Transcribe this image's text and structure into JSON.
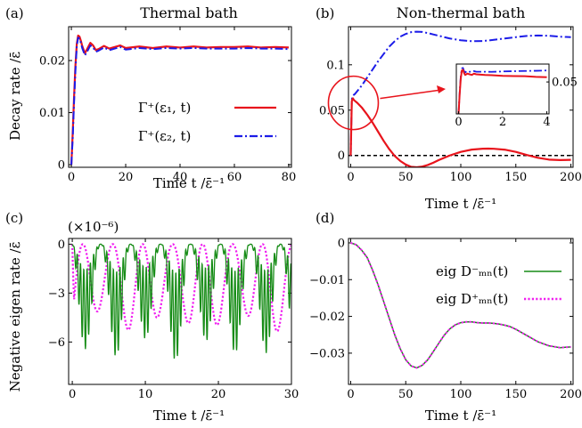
{
  "figure": {
    "ylabel_top": "Decay rate /ε̄",
    "ylabel_bottom": "Negative eigen rate /ε̄"
  },
  "colors": {
    "red": "#e8141c",
    "blue": "#1c1ce8",
    "green": "#168c16",
    "magenta": "#f01ef0",
    "dashed": "#000000"
  },
  "chart_data": [
    {
      "id": "a",
      "panel_label": "(a)",
      "title": "Thermal bath",
      "type": "line",
      "xlabel": "Time t /ε̄⁻¹",
      "ylabel": "Decay rate /ε̄",
      "xlim": [
        -1,
        81
      ],
      "ylim": [
        -0.0005,
        0.0265
      ],
      "xticks": [
        0,
        20,
        40,
        60,
        80
      ],
      "xtick_labels": [
        "0",
        "20",
        "40",
        "60",
        "80"
      ],
      "yticks": [
        0,
        0.01,
        0.02
      ],
      "ytick_labels": [
        "0",
        "0.01",
        "0.02"
      ],
      "legend": {
        "position": "center-right",
        "entries": [
          "Γ⁺(ε₁, t)",
          "Γ⁺(ε₂, t)"
        ]
      },
      "series": [
        {
          "name": "Γ⁺(ε₁, t)",
          "color": "red",
          "style": "solid",
          "x": [
            0,
            0.5,
            1,
            1.5,
            2,
            2.5,
            3,
            3.5,
            4,
            5,
            6,
            7,
            8,
            9,
            10,
            12,
            14,
            16,
            18,
            20,
            25,
            30,
            35,
            40,
            45,
            50,
            55,
            60,
            65,
            70,
            75,
            80
          ],
          "y": [
            0,
            0.006,
            0.013,
            0.019,
            0.0232,
            0.0248,
            0.0246,
            0.0238,
            0.0228,
            0.0214,
            0.0224,
            0.0234,
            0.0229,
            0.022,
            0.0222,
            0.0228,
            0.0223,
            0.0226,
            0.0229,
            0.0224,
            0.0227,
            0.0224,
            0.0227,
            0.0225,
            0.0227,
            0.0225,
            0.0226,
            0.0226,
            0.0227,
            0.0225,
            0.0226,
            0.0225
          ]
        },
        {
          "name": "Γ⁺(ε₂, t)",
          "color": "blue",
          "style": "dashdot",
          "x": [
            0,
            0.5,
            1,
            1.5,
            2,
            2.5,
            3,
            3.5,
            4,
            5,
            6,
            7,
            8,
            9,
            10,
            12,
            14,
            16,
            18,
            20,
            25,
            30,
            35,
            40,
            45,
            50,
            55,
            60,
            65,
            70,
            75,
            80
          ],
          "y": [
            0,
            0.005,
            0.012,
            0.018,
            0.0228,
            0.0244,
            0.0242,
            0.0234,
            0.0224,
            0.021,
            0.0219,
            0.0229,
            0.0225,
            0.0217,
            0.0219,
            0.0225,
            0.022,
            0.0223,
            0.0226,
            0.0221,
            0.0224,
            0.0222,
            0.0224,
            0.0223,
            0.0224,
            0.0223,
            0.0223,
            0.0223,
            0.0224,
            0.0223,
            0.0223,
            0.0222
          ]
        }
      ]
    },
    {
      "id": "b",
      "panel_label": "(b)",
      "title": "Non-thermal bath",
      "type": "line",
      "xlabel": "Time t /ε̄⁻¹",
      "ylabel": "",
      "xlim": [
        -2,
        202
      ],
      "ylim": [
        -0.013,
        0.142
      ],
      "xticks": [
        0,
        50,
        100,
        150,
        200
      ],
      "xtick_labels": [
        "0",
        "50",
        "100",
        "150",
        "200"
      ],
      "yticks": [
        0,
        0.05,
        0.1
      ],
      "ytick_labels": [
        "0",
        "0.05",
        "0.1"
      ],
      "reference_line": {
        "y": 0,
        "style": "dashed",
        "color": "dashed"
      },
      "series": [
        {
          "name": "Γ⁺(ε₁, t)",
          "color": "red",
          "style": "solid",
          "x": [
            0,
            1,
            2,
            3,
            4,
            6,
            10,
            15,
            20,
            25,
            30,
            35,
            40,
            45,
            50,
            55,
            60,
            65,
            70,
            75,
            80,
            90,
            100,
            110,
            120,
            125,
            130,
            140,
            150,
            160,
            170,
            180,
            190,
            200
          ],
          "y": [
            0,
            0.06,
            0.063,
            0.061,
            0.06,
            0.058,
            0.053,
            0.045,
            0.036,
            0.026,
            0.016,
            0.007,
            -0.0005,
            -0.006,
            -0.01,
            -0.0125,
            -0.013,
            -0.0122,
            -0.0105,
            -0.008,
            -0.005,
            0,
            0.004,
            0.0065,
            0.0075,
            0.0076,
            0.0074,
            0.0064,
            0.004,
            0.0005,
            -0.0025,
            -0.0045,
            -0.005,
            -0.0048
          ]
        },
        {
          "name": "Γ⁺(ε₂, t)",
          "color": "blue",
          "style": "dashdot",
          "x": [
            0,
            1,
            2,
            3,
            4,
            6,
            10,
            15,
            20,
            25,
            30,
            35,
            40,
            45,
            50,
            55,
            60,
            65,
            70,
            75,
            80,
            90,
            100,
            110,
            120,
            125,
            130,
            140,
            150,
            160,
            170,
            180,
            190,
            200
          ],
          "y": [
            0,
            0.062,
            0.066,
            0.067,
            0.068,
            0.071,
            0.077,
            0.086,
            0.095,
            0.104,
            0.112,
            0.12,
            0.126,
            0.131,
            0.134,
            0.136,
            0.1365,
            0.1362,
            0.135,
            0.1335,
            0.132,
            0.129,
            0.127,
            0.126,
            0.1262,
            0.1268,
            0.1275,
            0.129,
            0.1305,
            0.1318,
            0.1323,
            0.132,
            0.131,
            0.1305
          ]
        }
      ],
      "inset": {
        "xlim": [
          -0.1,
          4.1
        ],
        "ylim": [
          0,
          0.078
        ],
        "xticks": [
          0,
          2,
          4
        ],
        "xtick_labels": [
          "0",
          "2",
          "4"
        ],
        "yticks": [
          0.05
        ],
        "ytick_labels": [
          "0.05"
        ],
        "series": [
          {
            "name": "Γ⁺(ε₁, t)",
            "color": "red",
            "style": "solid",
            "x": [
              0,
              0.05,
              0.1,
              0.15,
              0.2,
              0.25,
              0.3,
              0.4,
              0.5,
              0.6,
              0.7,
              0.8,
              1,
              1.2,
              1.5,
              2,
              2.5,
              3,
              3.5,
              4
            ],
            "y": [
              0,
              0.03,
              0.055,
              0.068,
              0.069,
              0.064,
              0.061,
              0.063,
              0.062,
              0.061,
              0.063,
              0.062,
              0.0615,
              0.061,
              0.0605,
              0.0595,
              0.0592,
              0.059,
              0.058,
              0.0575
            ]
          },
          {
            "name": "Γ⁺(ε₂, t)",
            "color": "blue",
            "style": "dashdot",
            "x": [
              0,
              0.05,
              0.1,
              0.15,
              0.2,
              0.25,
              0.3,
              0.4,
              0.5,
              0.6,
              0.7,
              0.8,
              1,
              1.2,
              1.5,
              2,
              2.5,
              3,
              3.5,
              4
            ],
            "y": [
              0,
              0.032,
              0.058,
              0.071,
              0.072,
              0.067,
              0.065,
              0.067,
              0.066,
              0.066,
              0.067,
              0.066,
              0.066,
              0.066,
              0.0658,
              0.0665,
              0.0668,
              0.0672,
              0.0675,
              0.068
            ]
          }
        ]
      }
    },
    {
      "id": "c",
      "panel_label": "(c)",
      "title": "",
      "type": "line",
      "scale_note": "(×10⁻⁶)",
      "xlabel": "Time t /ε̄⁻¹",
      "ylabel": "Negative eigen rate /ε̄",
      "xlim": [
        -0.5,
        30
      ],
      "ylim": [
        -8.6,
        0.35
      ],
      "xticks": [
        0,
        10,
        20,
        30
      ],
      "xtick_labels": [
        "0",
        "10",
        "20",
        "30"
      ],
      "yticks": [
        0,
        -3,
        -6
      ],
      "ytick_labels": [
        "0",
        "−3",
        "−6"
      ],
      "series": [
        {
          "name": "eig D⁻ₘₙ(t)",
          "color": "green",
          "style": "solid",
          "envelope_period": 4.1,
          "envelope_min": -7.2,
          "fast_period": 0.45
        },
        {
          "name": "eig D⁺ₘₙ(t)",
          "color": "magenta",
          "style": "dotted",
          "envelope_period": 4.1,
          "envelope_min": -5.6,
          "phase": 2.05
        }
      ]
    },
    {
      "id": "d",
      "panel_label": "(d)",
      "title": "",
      "type": "line",
      "xlabel": "Time t /ε̄⁻¹",
      "ylabel": "",
      "xlim": [
        -2,
        202
      ],
      "ylim": [
        -0.0385,
        0.0012
      ],
      "xticks": [
        0,
        50,
        100,
        150,
        200
      ],
      "xtick_labels": [
        "0",
        "50",
        "100",
        "150",
        "200"
      ],
      "yticks": [
        0,
        -0.01,
        -0.02,
        -0.03
      ],
      "ytick_labels": [
        "0",
        "−0.01",
        "−0.02",
        "−0.03"
      ],
      "legend": {
        "position": "top-right",
        "entries": [
          "eig D⁻ₘₙ(t)",
          "eig D⁺ₘₙ(t)"
        ]
      },
      "series": [
        {
          "name": "eig D⁻ₘₙ(t)",
          "color": "green",
          "style": "solid",
          "x": [
            0,
            5,
            10,
            15,
            20,
            25,
            30,
            35,
            40,
            45,
            50,
            55,
            60,
            65,
            70,
            75,
            80,
            85,
            90,
            95,
            100,
            105,
            110,
            115,
            120,
            125,
            130,
            135,
            140,
            145,
            150,
            160,
            170,
            180,
            190,
            200
          ],
          "y": [
            0,
            -0.0005,
            -0.002,
            -0.004,
            -0.0075,
            -0.0115,
            -0.016,
            -0.0205,
            -0.025,
            -0.0288,
            -0.0318,
            -0.0335,
            -0.034,
            -0.0333,
            -0.0318,
            -0.0296,
            -0.0273,
            -0.0251,
            -0.0234,
            -0.0223,
            -0.0217,
            -0.0215,
            -0.0215,
            -0.0217,
            -0.0218,
            -0.0218,
            -0.0219,
            -0.0221,
            -0.0224,
            -0.0228,
            -0.0235,
            -0.0252,
            -0.0269,
            -0.028,
            -0.0285,
            -0.0283
          ]
        },
        {
          "name": "eig D⁺ₘₙ(t)",
          "color": "magenta",
          "style": "dotted",
          "x": [
            0,
            5,
            10,
            15,
            20,
            25,
            30,
            35,
            40,
            45,
            50,
            55,
            60,
            65,
            70,
            75,
            80,
            85,
            90,
            95,
            100,
            105,
            110,
            115,
            120,
            125,
            130,
            135,
            140,
            145,
            150,
            160,
            170,
            180,
            190,
            200
          ],
          "y": [
            0,
            -0.0005,
            -0.002,
            -0.004,
            -0.0075,
            -0.0115,
            -0.016,
            -0.0205,
            -0.025,
            -0.0288,
            -0.0318,
            -0.0335,
            -0.034,
            -0.0333,
            -0.0318,
            -0.0296,
            -0.0273,
            -0.0251,
            -0.0234,
            -0.0223,
            -0.0217,
            -0.0215,
            -0.0215,
            -0.0217,
            -0.0218,
            -0.0218,
            -0.0219,
            -0.0221,
            -0.0224,
            -0.0228,
            -0.0235,
            -0.0252,
            -0.0269,
            -0.028,
            -0.0285,
            -0.0283
          ]
        }
      ]
    }
  ]
}
